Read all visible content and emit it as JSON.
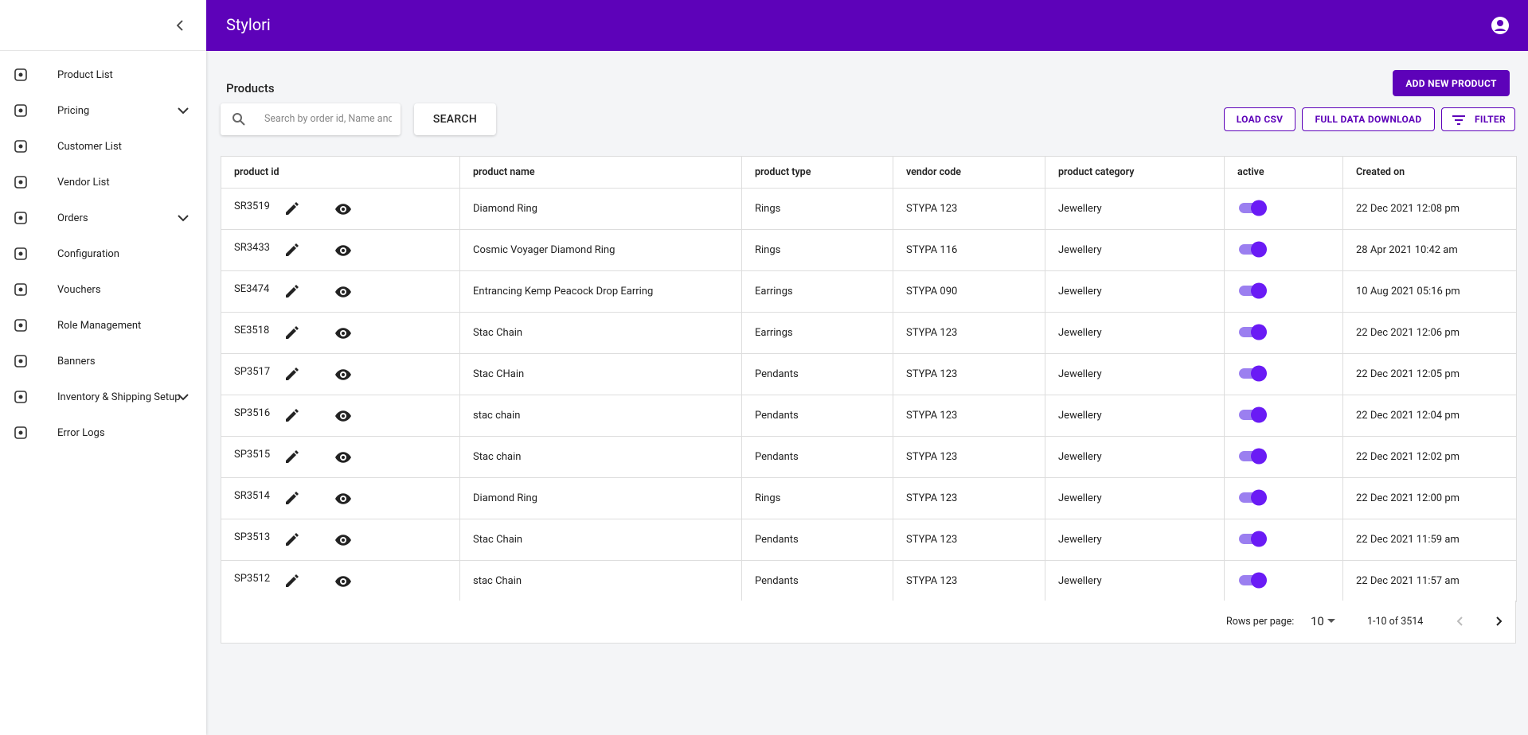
{
  "header": {
    "title": "Stylori"
  },
  "sidebar": {
    "items": [
      {
        "label": "Product List",
        "expandable": false
      },
      {
        "label": "Pricing",
        "expandable": true
      },
      {
        "label": "Customer List",
        "expandable": false
      },
      {
        "label": "Vendor List",
        "expandable": false
      },
      {
        "label": "Orders",
        "expandable": true
      },
      {
        "label": "Configuration",
        "expandable": false
      },
      {
        "label": "Vouchers",
        "expandable": false
      },
      {
        "label": "Role Management",
        "expandable": false
      },
      {
        "label": "Banners",
        "expandable": false
      },
      {
        "label": "Inventory & Shipping Setup",
        "expandable": true
      },
      {
        "label": "Error Logs",
        "expandable": false
      }
    ]
  },
  "page": {
    "title": "Products",
    "add_button": "ADD NEW PRODUCT",
    "search_placeholder": "Search by order id, Name and",
    "search_button": "SEARCH",
    "load_csv": "LOAD CSV",
    "full_download": "FULL DATA DOWNLOAD",
    "filter": "FILTER"
  },
  "table": {
    "columns": [
      "product id",
      "product name",
      "product type",
      "vendor code",
      "product category",
      "active",
      "Created on"
    ],
    "rows": [
      [
        "SR3519",
        "Diamond Ring",
        "Rings",
        "STYPA 123",
        "Jewellery",
        "22 Dec 2021 12:08 pm"
      ],
      [
        "SR3433",
        "Cosmic Voyager Diamond Ring",
        "Rings",
        "STYPA 116",
        "Jewellery",
        "28 Apr 2021 10:42 am"
      ],
      [
        "SE3474",
        "Entrancing Kemp Peacock Drop Earring",
        "Earrings",
        "STYPA 090",
        "Jewellery",
        "10 Aug 2021 05:16 pm"
      ],
      [
        "SE3518",
        "Stac Chain",
        "Earrings",
        "STYPA 123",
        "Jewellery",
        "22 Dec 2021 12:06 pm"
      ],
      [
        "SP3517",
        "Stac CHain",
        "Pendants",
        "STYPA 123",
        "Jewellery",
        "22 Dec 2021 12:05 pm"
      ],
      [
        "SP3516",
        "stac chain",
        "Pendants",
        "STYPA 123",
        "Jewellery",
        "22 Dec 2021 12:04 pm"
      ],
      [
        "SP3515",
        "Stac chain",
        "Pendants",
        "STYPA 123",
        "Jewellery",
        "22 Dec 2021 12:02 pm"
      ],
      [
        "SR3514",
        "Diamond Ring",
        "Rings",
        "STYPA 123",
        "Jewellery",
        "22 Dec 2021 12:00 pm"
      ],
      [
        "SP3513",
        "Stac Chain",
        "Pendants",
        "STYPA 123",
        "Jewellery",
        "22 Dec 2021 11:59 am"
      ],
      [
        "SP3512",
        "stac Chain",
        "Pendants",
        "STYPA 123",
        "Jewellery",
        "22 Dec 2021 11:57 am"
      ]
    ]
  },
  "pagination": {
    "rows_per_page_label": "Rows per page:",
    "rows_per_page": "10",
    "range": "1-10 of 3514"
  }
}
